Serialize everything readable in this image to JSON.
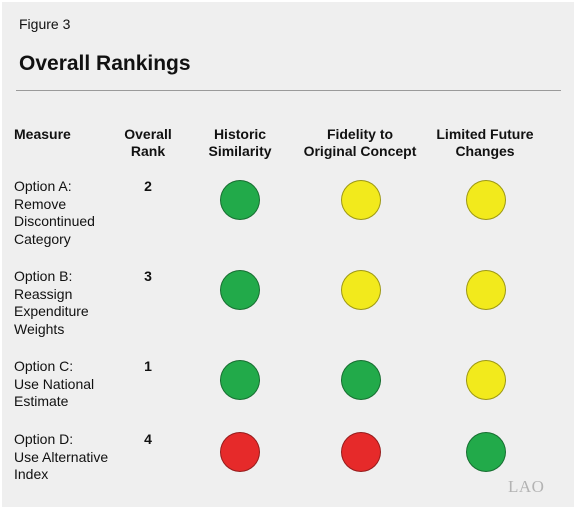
{
  "figure_label": "Figure 3",
  "title": "Overall Rankings",
  "columns": {
    "measure": "Measure",
    "rank": "Overall\nRank",
    "historic": "Historic\nSimilarity",
    "fidelity": "Fidelity to\nOriginal Concept",
    "limited": "Limited Future\nChanges"
  },
  "colors": {
    "green": "#22aa4a",
    "yellow": "#f2ea1c",
    "red": "#e62a2a"
  },
  "rows": [
    {
      "measure": "Option A:\nRemove\nDiscontinued\nCategory",
      "rank": "2",
      "historic": "green",
      "fidelity": "yellow",
      "limited": "yellow"
    },
    {
      "measure": "Option B:\nReassign\nExpenditure\nWeights",
      "rank": "3",
      "historic": "green",
      "fidelity": "yellow",
      "limited": "yellow"
    },
    {
      "measure": "Option C:\nUse National\nEstimate",
      "rank": "1",
      "historic": "green",
      "fidelity": "green",
      "limited": "yellow"
    },
    {
      "measure": "Option D:\nUse Alternative\nIndex",
      "rank": "4",
      "historic": "red",
      "fidelity": "red",
      "limited": "green"
    }
  ],
  "logo": "LAO"
}
